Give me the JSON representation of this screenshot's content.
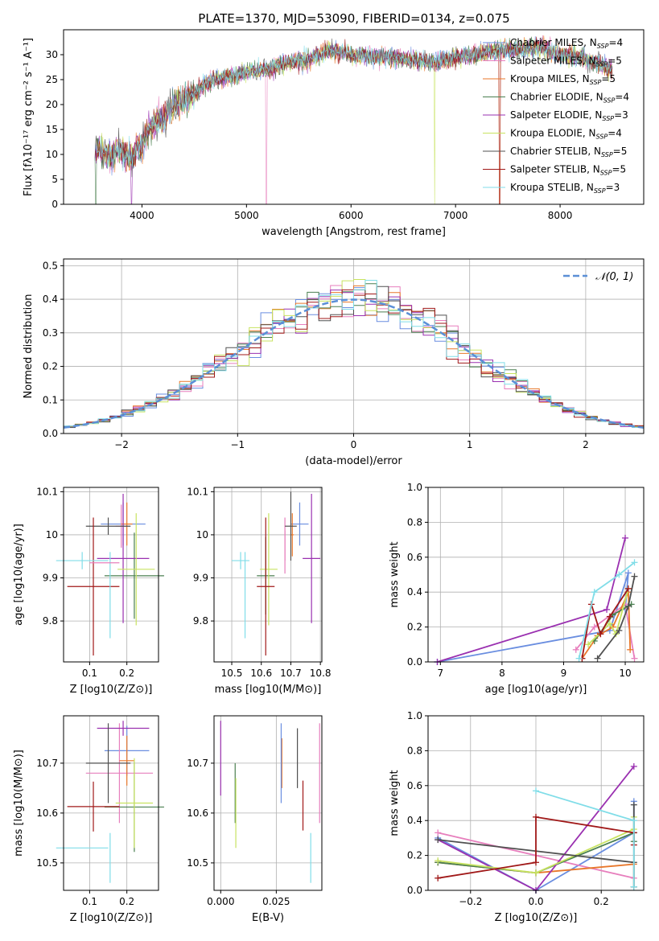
{
  "title": "PLATE=1370, MJD=53090, FIBERID=0134, z=0.075",
  "colors": {
    "chabrier_miles": "#6a8ee0",
    "salpeter_miles": "#e77fbd",
    "kroupa_miles": "#e8772a",
    "chabrier_elodie": "#4a7f50",
    "salpeter_elodie": "#9a30b0",
    "kroupa_elodie": "#c8e360",
    "chabrier_stelib": "#505050",
    "salpeter_stelib": "#a01818",
    "kroupa_stelib": "#80dde8",
    "normal_curve": "#5b8fd6",
    "grid": "#b0b0b0"
  },
  "chart_data": [
    {
      "id": "spectrum",
      "type": "line",
      "xlabel": "wavelength [Angstrom, rest frame]",
      "ylabel": "Flux [fλ10⁻¹⁷ erg cm⁻² s⁻¹ A⁻¹]",
      "xlim": [
        3250,
        8800
      ],
      "ylim": [
        0,
        35
      ],
      "xticks": [
        4000,
        5000,
        6000,
        7000,
        8000
      ],
      "yticks": [
        0,
        5,
        10,
        15,
        20,
        25,
        30
      ],
      "grid": false,
      "legend_position": "top-right",
      "continuum": {
        "x": [
          3550,
          3700,
          3800,
          3900,
          4000,
          4100,
          4200,
          4300,
          4400,
          4500,
          4600,
          4700,
          4800,
          4900,
          5000,
          5200,
          5400,
          5600,
          5800,
          6000,
          6200,
          6400,
          6600,
          6800,
          7000,
          7200,
          7400,
          7600,
          7800,
          8000,
          8200,
          8400,
          8500
        ],
        "y": [
          11,
          10,
          11,
          9,
          12,
          16,
          17,
          20,
          21,
          22,
          24,
          25,
          25.5,
          26,
          26.5,
          27,
          28.5,
          29,
          31,
          30,
          29.5,
          29.5,
          29,
          28.5,
          29.5,
          30,
          31,
          31,
          31.5,
          30,
          29.5,
          28,
          27
        ]
      },
      "series": [
        {
          "name": "Chabrier MILES, N_SSP=4",
          "color_key": "chabrier_miles"
        },
        {
          "name": "Salpeter MILES, N_SSP=5",
          "color_key": "salpeter_miles"
        },
        {
          "name": "Kroupa MILES, N_SSP=5",
          "color_key": "kroupa_miles"
        },
        {
          "name": "Chabrier ELODIE, N_SSP=4",
          "color_key": "chabrier_elodie"
        },
        {
          "name": "Salpeter ELODIE, N_SSP=3",
          "color_key": "salpeter_elodie"
        },
        {
          "name": "Kroupa ELODIE, N_SSP=4",
          "color_key": "kroupa_elodie"
        },
        {
          "name": "Chabrier STELIB, N_SSP=5",
          "color_key": "chabrier_stelib"
        },
        {
          "name": "Salpeter STELIB, N_SSP=5",
          "color_key": "salpeter_stelib"
        },
        {
          "name": "Kroupa STELIB, N_SSP=3",
          "color_key": "kroupa_stelib"
        }
      ]
    },
    {
      "id": "residuals",
      "type": "histogram",
      "xlabel": "(data-model)/error",
      "ylabel": "Normed distribution",
      "xlim": [
        -2.5,
        2.5
      ],
      "ylim": [
        0,
        0.52
      ],
      "xticks": [
        -2,
        -1,
        0,
        1,
        2
      ],
      "yticks": [
        0.0,
        0.1,
        0.2,
        0.3,
        0.4,
        0.5
      ],
      "grid": true,
      "legend_position": "top-right",
      "legend": "𝒩(0, 1)",
      "bin_width": 0.1,
      "bin_start": -2.5
    },
    {
      "id": "age_vs_Z",
      "type": "errorbar",
      "xlabel": "Z [log10(Z/Z⊙)]",
      "ylabel": "age  [log10(age/yr)]",
      "xlim": [
        0.03,
        0.285
      ],
      "ylim": [
        9.705,
        10.11
      ],
      "xticks": [
        0.1,
        0.2
      ],
      "yticks": [
        9.8,
        9.9,
        10.0,
        10.1
      ],
      "grid": true,
      "points": [
        {
          "key": "chabrier_miles",
          "x": 0.19,
          "y": 10.025,
          "xe": 0.06,
          "ye": 0.05
        },
        {
          "key": "salpeter_miles",
          "x": 0.185,
          "y": 10.02,
          "xe": 0.015,
          "ye": 0.05
        },
        {
          "key": "kroupa_miles",
          "x": 0.2,
          "y": 10.025,
          "xe": 0.015,
          "ye": 0.05
        },
        {
          "key": "chabrier_elodie",
          "x": 0.22,
          "y": 9.905,
          "xe": 0.08,
          "ye": 0.1
        },
        {
          "key": "salpeter_elodie",
          "x": 0.19,
          "y": 9.945,
          "xe": 0.07,
          "ye": 0.15
        },
        {
          "key": "kroupa_elodie",
          "x": 0.225,
          "y": 9.92,
          "xe": 0.05,
          "ye": 0.13
        },
        {
          "key": "chabrier_stelib",
          "x": 0.15,
          "y": 10.02,
          "xe": 0.06,
          "ye": 0.02
        },
        {
          "key": "salpeter_stelib",
          "x": 0.11,
          "y": 9.88,
          "xe": 0.07,
          "ye": 0.16
        },
        {
          "key": "kroupa_stelib",
          "x": 0.08,
          "y": 9.94,
          "xe": 0.07,
          "ye": 0.02
        },
        {
          "key": "kroupa_stelib",
          "x": 0.155,
          "y": 9.86,
          "xe": 0.0,
          "ye": 0.1
        },
        {
          "key": "salpeter_miles",
          "x": 0.14,
          "y": 9.935,
          "xe": 0.04,
          "ye": 0.0
        }
      ]
    },
    {
      "id": "age_vs_mass",
      "type": "errorbar",
      "xlabel": "mass [log10(M/M⊙)]",
      "ylabel": "",
      "xlim": [
        10.44,
        10.805
      ],
      "ylim": [
        9.705,
        10.11
      ],
      "xticks": [
        10.5,
        10.6,
        10.7,
        10.8
      ],
      "yticks": [
        9.8,
        9.9,
        10.0,
        10.1
      ],
      "grid": true,
      "points": [
        {
          "key": "chabrier_miles",
          "x": 10.73,
          "y": 10.025,
          "xe": 0.03,
          "ye": 0.05
        },
        {
          "key": "salpeter_miles",
          "x": 10.68,
          "y": 9.99,
          "xe": 0.0,
          "ye": 0.05
        },
        {
          "key": "kroupa_miles",
          "x": 10.705,
          "y": 10.0,
          "xe": 0.005,
          "ye": 0.05
        },
        {
          "key": "chabrier_elodie",
          "x": 10.615,
          "y": 9.905,
          "xe": 0.03,
          "ye": 0.09
        },
        {
          "key": "salpeter_elodie",
          "x": 10.77,
          "y": 9.945,
          "xe": 0.03,
          "ye": 0.15
        },
        {
          "key": "kroupa_elodie",
          "x": 10.625,
          "y": 9.92,
          "xe": 0.03,
          "ye": 0.13
        },
        {
          "key": "chabrier_stelib",
          "x": 10.7,
          "y": 10.02,
          "xe": 0.02,
          "ye": 0.08
        },
        {
          "key": "salpeter_stelib",
          "x": 10.615,
          "y": 9.88,
          "xe": 0.03,
          "ye": 0.16
        },
        {
          "key": "kroupa_stelib",
          "x": 10.53,
          "y": 9.94,
          "xe": 0.03,
          "ye": 0.02
        },
        {
          "key": "kroupa_stelib",
          "x": 10.545,
          "y": 9.86,
          "xe": 0.0,
          "ye": 0.1
        },
        {
          "key": "salpeter_miles",
          "x": 10.68,
          "y": 9.96,
          "xe": 0.0,
          "ye": 0.05
        }
      ]
    },
    {
      "id": "mass_weight_vs_age",
      "type": "line",
      "xlabel": "age  [log10(age/yr)]",
      "ylabel": "mass weight",
      "xlim": [
        6.8,
        10.3
      ],
      "ylim": [
        0,
        1.0
      ],
      "xticks": [
        7,
        8,
        9,
        10
      ],
      "yticks": [
        0.0,
        0.2,
        0.4,
        0.6,
        0.8,
        1.0
      ],
      "grid": true,
      "series": [
        {
          "key": "chabrier_miles",
          "x": [
            6.95,
            9.75,
            10.05,
            10.0
          ],
          "y": [
            0.0,
            0.18,
            0.51,
            0.3
          ]
        },
        {
          "key": "salpeter_miles",
          "x": [
            9.2,
            9.5,
            10.0,
            10.15
          ],
          "y": [
            0.07,
            0.2,
            0.33,
            0.02
          ]
        },
        {
          "key": "kroupa_miles",
          "x": [
            9.3,
            9.55,
            9.8,
            10.05,
            10.08
          ],
          "y": [
            0.02,
            0.15,
            0.2,
            0.4,
            0.07
          ]
        },
        {
          "key": "chabrier_elodie",
          "x": [
            9.5,
            9.8,
            10.1
          ],
          "y": [
            0.12,
            0.27,
            0.33
          ]
        },
        {
          "key": "salpeter_elodie",
          "x": [
            6.95,
            9.7,
            10.0
          ],
          "y": [
            0.0,
            0.3,
            0.71
          ]
        },
        {
          "key": "kroupa_elodie",
          "x": [
            9.4,
            9.75,
            9.85,
            10.05
          ],
          "y": [
            0.1,
            0.22,
            0.16,
            0.42
          ]
        },
        {
          "key": "chabrier_stelib",
          "x": [
            9.55,
            9.9,
            10.05,
            10.15
          ],
          "y": [
            0.02,
            0.18,
            0.32,
            0.49
          ]
        },
        {
          "key": "salpeter_stelib",
          "x": [
            9.3,
            9.45,
            9.6,
            9.75,
            10.05
          ],
          "y": [
            0.02,
            0.33,
            0.16,
            0.26,
            0.42
          ]
        },
        {
          "key": "kroupa_stelib",
          "x": [
            9.25,
            9.5,
            9.9,
            10.15
          ],
          "y": [
            0.02,
            0.4,
            0.5,
            0.57
          ]
        }
      ]
    },
    {
      "id": "mass_vs_Z",
      "type": "errorbar",
      "xlabel": "Z [log10(Z/Z⊙)]",
      "ylabel": "mass [log10(M/M⊙)]",
      "xlim": [
        0.03,
        0.285
      ],
      "ylim": [
        10.445,
        10.795
      ],
      "xticks": [
        0.1,
        0.2
      ],
      "yticks": [
        10.5,
        10.6,
        10.7
      ],
      "grid": true,
      "points": [
        {
          "key": "chabrier_miles",
          "x": 0.2,
          "y": 10.725,
          "xe": 0.06,
          "ye": 0.05
        },
        {
          "key": "salpeter_miles",
          "x": 0.18,
          "y": 10.68,
          "xe": 0.09,
          "ye": 0.1
        },
        {
          "key": "kroupa_miles",
          "x": 0.2,
          "y": 10.705,
          "xe": 0.02,
          "ye": 0.05
        },
        {
          "key": "chabrier_elodie",
          "x": 0.22,
          "y": 10.612,
          "xe": 0.08,
          "ye": 0.09
        },
        {
          "key": "salpeter_elodie",
          "x": 0.19,
          "y": 10.77,
          "xe": 0.07,
          "ye": 0.015
        },
        {
          "key": "kroupa_elodie",
          "x": 0.22,
          "y": 10.62,
          "xe": 0.05,
          "ye": 0.09
        },
        {
          "key": "chabrier_stelib",
          "x": 0.15,
          "y": 10.7,
          "xe": 0.06,
          "ye": 0.08
        },
        {
          "key": "salpeter_stelib",
          "x": 0.11,
          "y": 10.613,
          "xe": 0.07,
          "ye": 0.05
        },
        {
          "key": "kroupa_stelib",
          "x": 0.08,
          "y": 10.53,
          "xe": 0.07,
          "ye": 0.0
        },
        {
          "key": "kroupa_stelib",
          "x": 0.155,
          "y": 10.51,
          "xe": 0.0,
          "ye": 0.05
        }
      ]
    },
    {
      "id": "mass_vs_ebv",
      "type": "errorbar",
      "xlabel": "E(B-V)",
      "ylabel": "",
      "xlim": [
        -0.003,
        0.0455
      ],
      "ylim": [
        10.445,
        10.795
      ],
      "xticks": [
        0.0,
        0.025
      ],
      "xticklabels": [
        "0.000",
        "0.025"
      ],
      "yticks": [
        10.5,
        10.6,
        10.7
      ],
      "grid": true,
      "points": [
        {
          "key": "salpeter_elodie",
          "x": 0.0,
          "y": 10.71,
          "xe": 0,
          "ye": 0.075
        },
        {
          "key": "chabrier_elodie",
          "x": 0.0065,
          "y": 10.64,
          "xe": 0,
          "ye": 0.06
        },
        {
          "key": "kroupa_elodie",
          "x": 0.0068,
          "y": 10.6,
          "xe": 0,
          "ye": 0.07
        },
        {
          "key": "kroupa_miles",
          "x": 0.0275,
          "y": 10.7,
          "xe": 0,
          "ye": 0.05
        },
        {
          "key": "chabrier_miles",
          "x": 0.0272,
          "y": 10.7,
          "xe": 0,
          "ye": 0.08
        },
        {
          "key": "chabrier_stelib",
          "x": 0.0345,
          "y": 10.71,
          "xe": 0,
          "ye": 0.06
        },
        {
          "key": "salpeter_stelib",
          "x": 0.037,
          "y": 10.615,
          "xe": 0,
          "ye": 0.05
        },
        {
          "key": "kroupa_stelib",
          "x": 0.0405,
          "y": 10.51,
          "xe": 0,
          "ye": 0.05
        },
        {
          "key": "salpeter_miles",
          "x": 0.0445,
          "y": 10.68,
          "xe": 0,
          "ye": 0.1
        }
      ]
    },
    {
      "id": "mass_weight_vs_Z",
      "type": "line",
      "xlabel": "Z [log10(Z/Z⊙)]",
      "ylabel": "mass weight",
      "xlim": [
        -0.33,
        0.33
      ],
      "ylim": [
        0,
        1.0
      ],
      "xticks": [
        -0.2,
        0.0,
        0.2
      ],
      "yticks": [
        0.0,
        0.2,
        0.4,
        0.6,
        0.8,
        1.0
      ],
      "grid": true,
      "series": [
        {
          "key": "chabrier_miles",
          "x": [
            -0.3,
            0.0,
            0.3,
            0.3
          ],
          "y": [
            0.3,
            0.0,
            0.33,
            0.51
          ]
        },
        {
          "key": "salpeter_miles",
          "x": [
            -0.3,
            0.0,
            0.3
          ],
          "y": [
            0.33,
            0.2,
            0.07
          ]
        },
        {
          "key": "kroupa_miles",
          "x": [
            -0.3,
            0.0,
            0.3,
            0.3
          ],
          "y": [
            0.16,
            0.1,
            0.15,
            0.02
          ]
        },
        {
          "key": "chabrier_elodie",
          "x": [
            -0.3,
            0.0,
            0.3,
            0.3
          ],
          "y": [
            0.16,
            0.1,
            0.33,
            0.28
          ]
        },
        {
          "key": "salpeter_elodie",
          "x": [
            -0.3,
            0.0,
            0.3
          ],
          "y": [
            0.29,
            0.0,
            0.71
          ]
        },
        {
          "key": "kroupa_elodie",
          "x": [
            -0.3,
            0.0,
            0.3,
            0.3
          ],
          "y": [
            0.17,
            0.1,
            0.35,
            0.42
          ]
        },
        {
          "key": "chabrier_stelib",
          "x": [
            -0.3,
            0.3,
            0.3,
            0.3
          ],
          "y": [
            0.29,
            0.16,
            0.49,
            0.02
          ]
        },
        {
          "key": "salpeter_stelib",
          "x": [
            -0.3,
            0.0,
            0.0,
            0.3,
            0.3
          ],
          "y": [
            0.07,
            0.16,
            0.42,
            0.33,
            0.26
          ]
        },
        {
          "key": "kroupa_stelib",
          "x": [
            0.0,
            0.3,
            0.3
          ],
          "y": [
            0.57,
            0.4,
            0.02
          ]
        }
      ]
    }
  ]
}
